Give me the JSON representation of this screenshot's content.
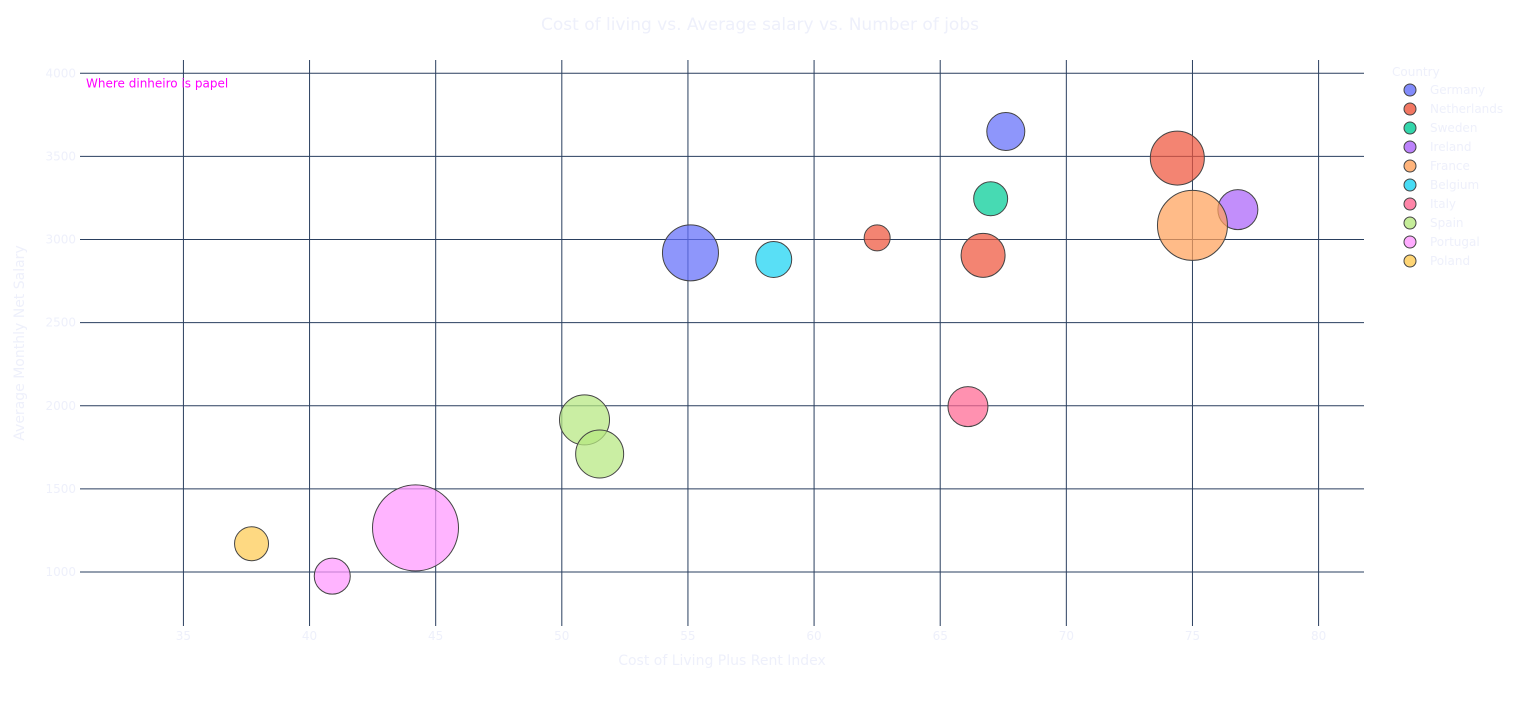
{
  "chart_data": {
    "type": "scatter",
    "title": "Cost of living vs. Average salary vs. Number of jobs",
    "xlabel": "Cost of Living Plus Rent Index",
    "ylabel": "Average Monthly Net Salary",
    "x_ticks": [
      35,
      40,
      45,
      50,
      55,
      60,
      65,
      70,
      75,
      80
    ],
    "y_ticks": [
      1000,
      1500,
      2000,
      2500,
      3000,
      3500,
      4000
    ],
    "x_tick_labels": [
      "35",
      "40",
      "45",
      "50",
      "55",
      "60",
      "65",
      "70",
      "75",
      "80"
    ],
    "y_tick_labels": [
      "1000",
      "1500",
      "2000",
      "2500",
      "3000",
      "3500",
      "4000"
    ],
    "xlim": [
      30.9,
      81.8
    ],
    "ylim": [
      675,
      4080
    ],
    "grid": true,
    "legend": {
      "title": "Country",
      "placement": "right",
      "entries": [
        "Germany",
        "Netherlands",
        "Sweden",
        "Ireland",
        "France",
        "Belgium",
        "Italy",
        "Spain",
        "Portugal",
        "Poland"
      ]
    },
    "annotation": {
      "text": "Where dinheiro is papel",
      "x": 31.1,
      "y": 3940,
      "color": "#ff00ff"
    },
    "series": [
      {
        "name": "Germany",
        "color": "#636efa",
        "points": [
          {
            "x": 67.6,
            "y": 3650,
            "size": 19
          },
          {
            "x": 55.1,
            "y": 2920,
            "size": 28
          }
        ]
      },
      {
        "name": "Netherlands",
        "color": "#ef553b",
        "points": [
          {
            "x": 74.4,
            "y": 3490,
            "size": 27
          },
          {
            "x": 66.7,
            "y": 2905,
            "size": 22
          },
          {
            "x": 62.5,
            "y": 3010,
            "size": 13
          }
        ]
      },
      {
        "name": "Sweden",
        "color": "#00cc96",
        "points": [
          {
            "x": 67.0,
            "y": 3245,
            "size": 17
          }
        ]
      },
      {
        "name": "Ireland",
        "color": "#ab63fa",
        "points": [
          {
            "x": 76.8,
            "y": 3180,
            "size": 20
          }
        ]
      },
      {
        "name": "France",
        "color": "#ffa15a",
        "points": [
          {
            "x": 75.0,
            "y": 3085,
            "size": 35
          }
        ]
      },
      {
        "name": "Belgium",
        "color": "#19d3f3",
        "points": [
          {
            "x": 58.4,
            "y": 2880,
            "size": 18
          }
        ]
      },
      {
        "name": "Italy",
        "color": "#ff6692",
        "points": [
          {
            "x": 66.1,
            "y": 1995,
            "size": 20
          }
        ]
      },
      {
        "name": "Spain",
        "color": "#b6e880",
        "points": [
          {
            "x": 50.9,
            "y": 1915,
            "size": 25
          },
          {
            "x": 51.5,
            "y": 1710,
            "size": 24
          }
        ]
      },
      {
        "name": "Portugal",
        "color": "#ff97ff",
        "points": [
          {
            "x": 44.2,
            "y": 1265,
            "size": 43
          },
          {
            "x": 40.9,
            "y": 975,
            "size": 18
          }
        ]
      },
      {
        "name": "Poland",
        "color": "#fecb52",
        "points": [
          {
            "x": 37.7,
            "y": 1170,
            "size": 17
          }
        ]
      }
    ]
  }
}
